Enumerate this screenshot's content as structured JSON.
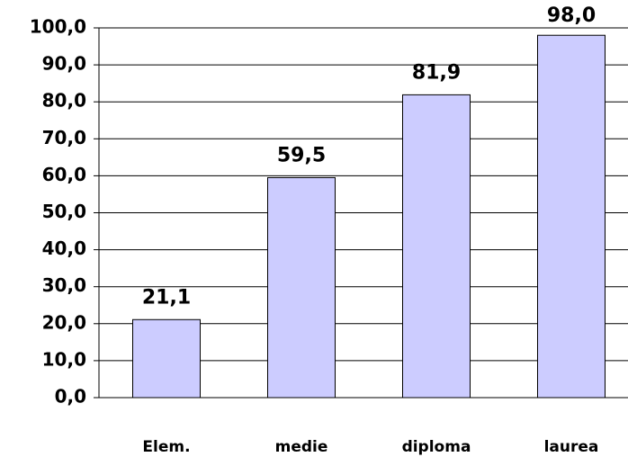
{
  "chart_data": {
    "type": "bar",
    "categories": [
      "Elem.",
      "medie",
      "diploma",
      "laurea"
    ],
    "values": [
      21.1,
      59.5,
      81.9,
      98.0
    ],
    "value_labels": [
      "21,1",
      "59,5",
      "81,9",
      "98,0"
    ],
    "color": "#ccccff",
    "ylim": [
      0,
      100
    ],
    "yticks": [
      {
        "value": 0,
        "label": "0,0"
      },
      {
        "value": 10,
        "label": "10,0"
      },
      {
        "value": 20,
        "label": "20,0"
      },
      {
        "value": 30,
        "label": "30,0"
      },
      {
        "value": 40,
        "label": "40,0"
      },
      {
        "value": 50,
        "label": "50,0"
      },
      {
        "value": 60,
        "label": "60,0"
      },
      {
        "value": 70,
        "label": "70,0"
      },
      {
        "value": 80,
        "label": "80,0"
      },
      {
        "value": 90,
        "label": "90,0"
      },
      {
        "value": 100,
        "label": "100,0"
      }
    ],
    "grid": true
  }
}
